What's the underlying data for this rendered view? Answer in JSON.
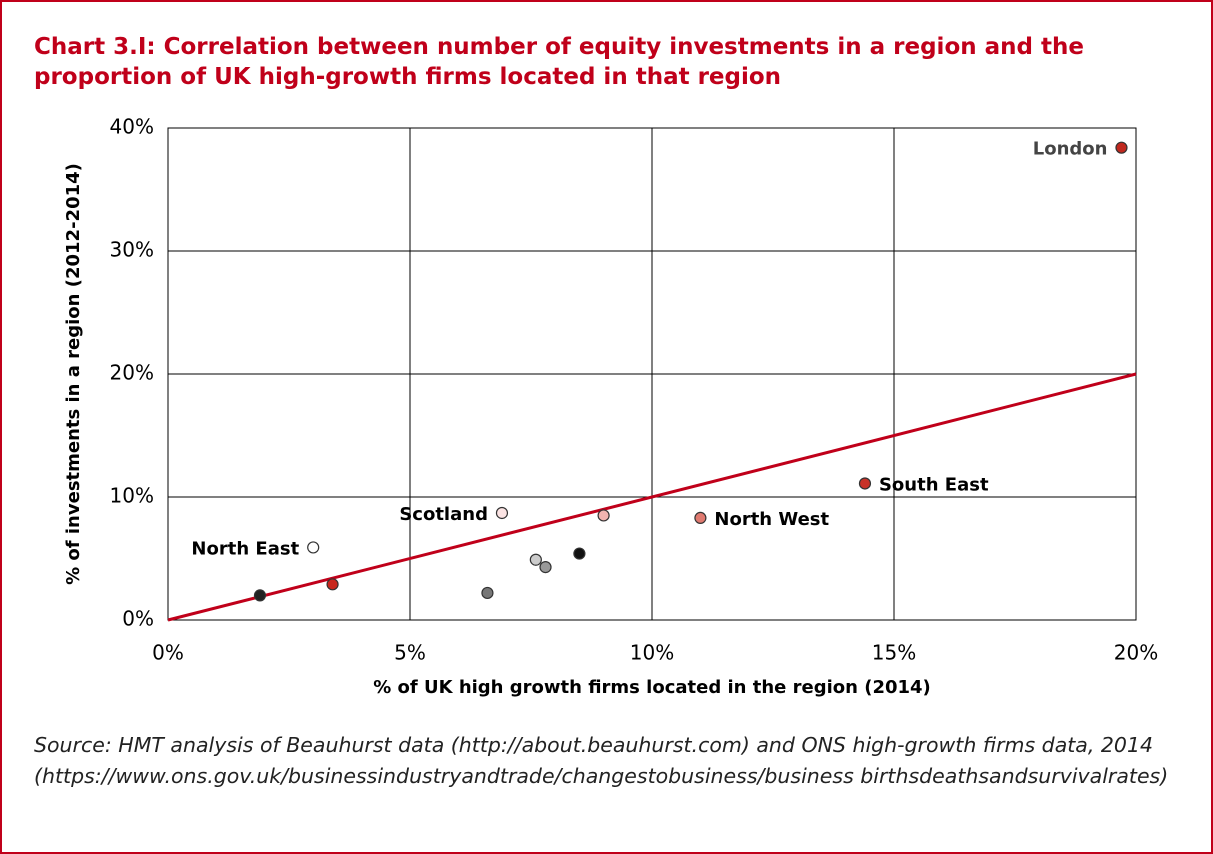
{
  "title": "Chart 3.I: Correlation between number of equity investments in a region and the proportion of UK high-growth firms located in that region",
  "source": "Source: HMT analysis of Beauhurst data (http://about.beauhurst.com) and ONS high-growth firms data, 2014 (https://www.ons.gov.uk/businessindustryandtrade/changestobusiness/business birthsdeathsandsurvivalrates)",
  "chart_data": {
    "type": "scatter",
    "x_label": "% of UK high growth firms located in the region (2014)",
    "y_label": "% of investments in a region (2012-2014)",
    "xlim": [
      0,
      20
    ],
    "ylim": [
      0,
      40
    ],
    "xticks": [
      {
        "value": 0,
        "label": "0%"
      },
      {
        "value": 5,
        "label": "5%"
      },
      {
        "value": 10,
        "label": "10%"
      },
      {
        "value": 15,
        "label": "15%"
      },
      {
        "value": 20,
        "label": "20%"
      }
    ],
    "yticks": [
      {
        "value": 0,
        "label": "0%"
      },
      {
        "value": 10,
        "label": "10%"
      },
      {
        "value": 20,
        "label": "20%"
      },
      {
        "value": 30,
        "label": "30%"
      },
      {
        "value": 40,
        "label": "40%"
      }
    ],
    "grid": true,
    "x": [
      19.7,
      14.4,
      11.0,
      6.9,
      3.0,
      9.0,
      8.5,
      7.6,
      7.8,
      6.6,
      3.4,
      1.9
    ],
    "values": [
      38.4,
      11.1,
      8.3,
      8.7,
      5.9,
      8.5,
      5.4,
      4.9,
      4.3,
      2.2,
      2.9,
      2.0
    ],
    "labels": [
      "London",
      "South East",
      "North West",
      "Scotland",
      "North East",
      null,
      null,
      null,
      null,
      null,
      null,
      null
    ],
    "colors": [
      "#c0281e",
      "#c83228",
      "#e07a70",
      "#fce4e4",
      "#ffffff",
      "#f0b4b0",
      "#111111",
      "#cccccc",
      "#999999",
      "#777777",
      "#c8281e",
      "#222222"
    ],
    "reference_line": {
      "x": [
        0,
        20
      ],
      "y": [
        0,
        20
      ],
      "color": "#c0001a"
    }
  }
}
